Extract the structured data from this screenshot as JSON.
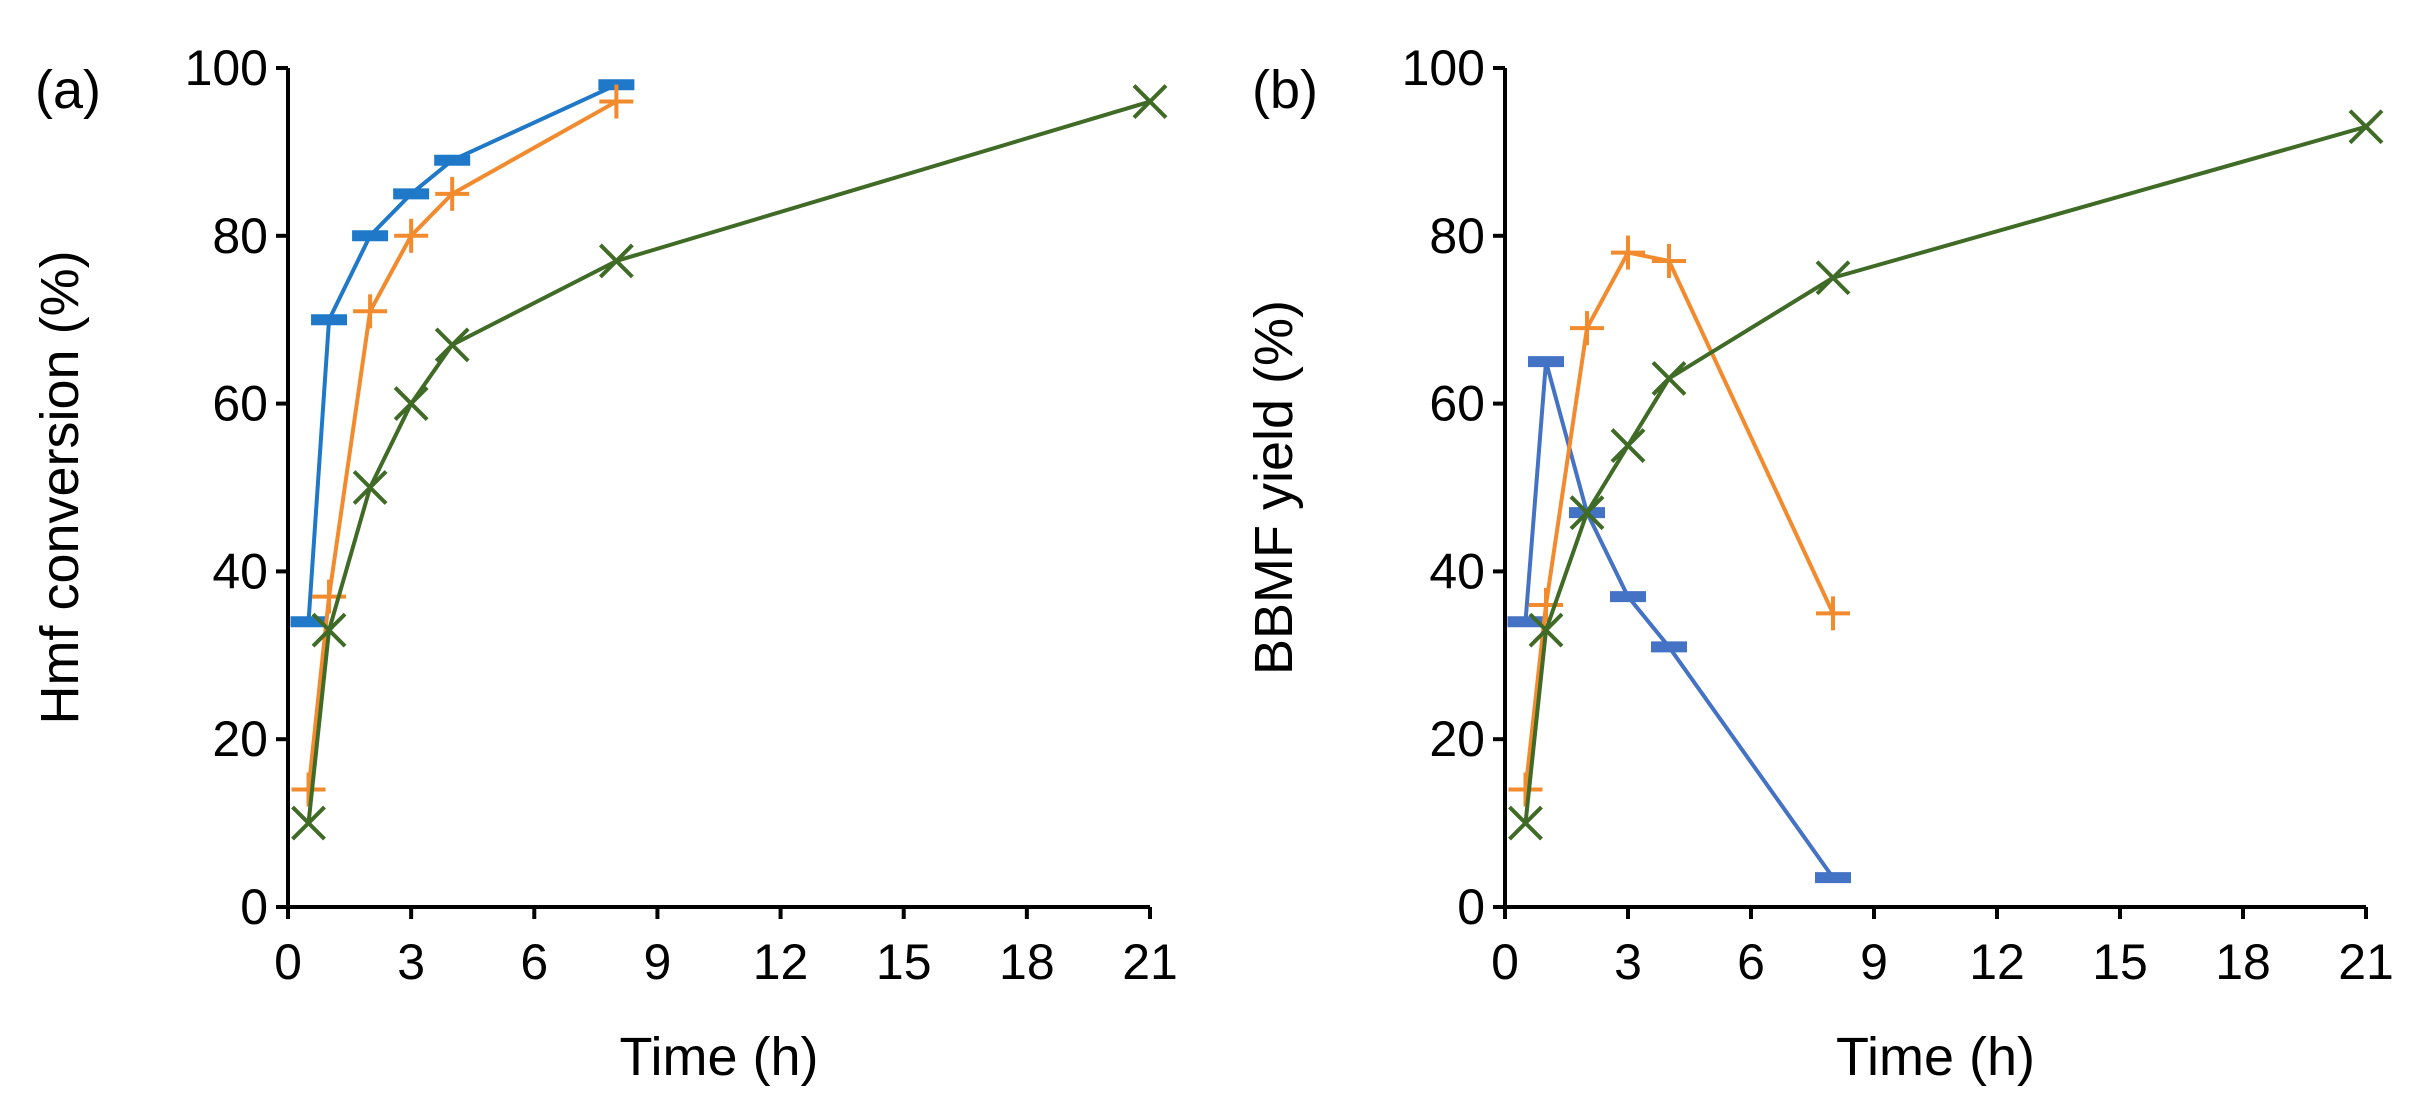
{
  "chart_data": [
    {
      "type": "line",
      "panel_label": "(a)",
      "xlabel": "Time (h)",
      "ylabel": "Hmf conversion (%)",
      "xlim": [
        0,
        21
      ],
      "ylim": [
        0,
        100
      ],
      "xticks": [
        "0",
        "3",
        "6",
        "9",
        "12",
        "15",
        "18",
        "21"
      ],
      "yticks": [
        "0",
        "20",
        "40",
        "60",
        "80",
        "100"
      ],
      "grid": false,
      "series": [
        {
          "name": "series-blue",
          "color": "#1f78c8",
          "marker": "dash",
          "x": [
            0.5,
            1,
            2,
            3,
            4,
            8
          ],
          "y": [
            34,
            70,
            80,
            85,
            89,
            98
          ]
        },
        {
          "name": "series-orange",
          "color": "#f28a2e",
          "marker": "plus",
          "x": [
            0.5,
            1,
            2,
            3,
            4,
            8
          ],
          "y": [
            14,
            37,
            71,
            80,
            85,
            96
          ]
        },
        {
          "name": "series-green",
          "color": "#3f6b26",
          "marker": "cross",
          "x": [
            0.5,
            1,
            2,
            3,
            4,
            8,
            21
          ],
          "y": [
            10,
            33,
            50,
            60,
            67,
            77,
            96
          ]
        }
      ]
    },
    {
      "type": "line",
      "panel_label": "(b)",
      "xlabel": "Time (h)",
      "ylabel": "BBMF yield (%)",
      "xlim": [
        0,
        21
      ],
      "ylim": [
        0,
        100
      ],
      "xticks": [
        "0",
        "3",
        "6",
        "9",
        "12",
        "15",
        "18",
        "21"
      ],
      "yticks": [
        "0",
        "20",
        "40",
        "60",
        "80",
        "100"
      ],
      "grid": false,
      "series": [
        {
          "name": "series-blue",
          "color": "#4472c4",
          "marker": "dash",
          "x": [
            0.5,
            1,
            2,
            3,
            4,
            8
          ],
          "y": [
            34,
            65,
            47,
            37,
            31,
            3.5
          ]
        },
        {
          "name": "series-orange",
          "color": "#f28a2e",
          "marker": "plus",
          "x": [
            0.5,
            1,
            2,
            3,
            4,
            8
          ],
          "y": [
            14,
            36,
            69,
            78,
            77,
            35
          ]
        },
        {
          "name": "series-green",
          "color": "#3f6b26",
          "marker": "cross",
          "x": [
            0.5,
            1,
            2,
            3,
            4,
            8,
            21
          ],
          "y": [
            10,
            33,
            47,
            55,
            63,
            75,
            93
          ]
        }
      ]
    }
  ]
}
